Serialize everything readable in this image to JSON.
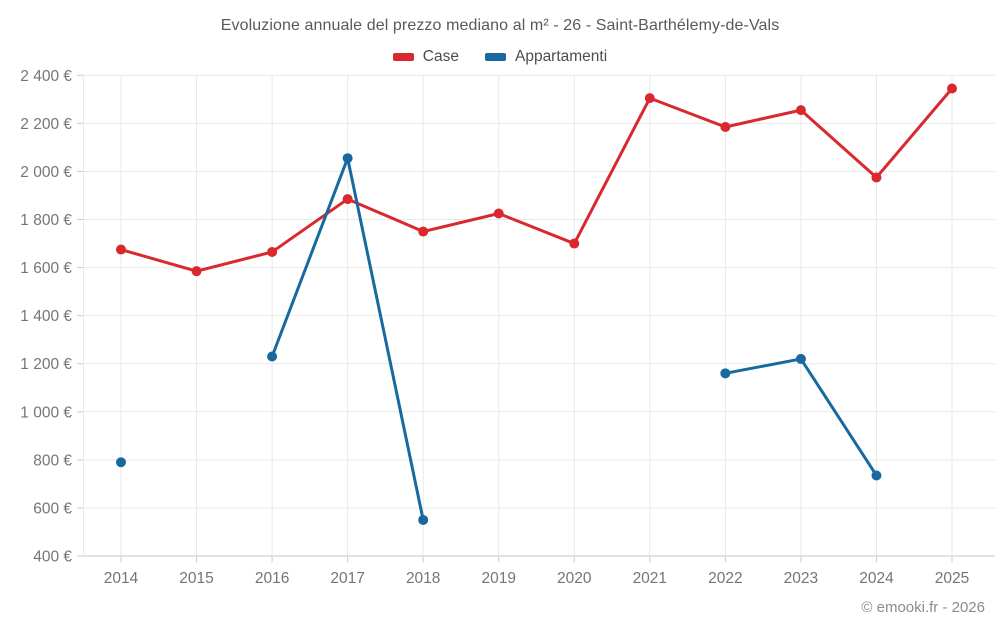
{
  "header": {
    "title": "Evoluzione annuale del prezzo mediano al m² - 26 - Saint-Barthélemy-de-Vals"
  },
  "footer": {
    "credit": "© emooki.fr - 2026"
  },
  "colors": {
    "case_red": "#d9292e",
    "appartamenti_blue": "#17699f",
    "grid_line": "#e9e9e9",
    "axis_line": "#c6c6c6",
    "tick_mark": "#cccccc",
    "tick_label": "#757575",
    "title_text": "#595959",
    "legend_text": "#4d4d4d",
    "background": "#ffffff"
  },
  "chart_data": {
    "type": "line",
    "title": "Evoluzione annuale del prezzo mediano al m² - 26 - Saint-Barthélemy-de-Vals",
    "categories": [
      "2014",
      "2015",
      "2016",
      "2017",
      "2018",
      "2019",
      "2020",
      "2021",
      "2022",
      "2023",
      "2024",
      "2025"
    ],
    "series": [
      {
        "name": "Case",
        "color": "#d9292e",
        "values": [
          1675,
          1585,
          1665,
          1885,
          1750,
          1825,
          1700,
          2305,
          2185,
          2255,
          1975,
          2345
        ]
      },
      {
        "name": "Appartamenti",
        "color": "#17699f",
        "values": [
          790,
          null,
          1230,
          2055,
          550,
          null,
          null,
          null,
          1160,
          1220,
          735,
          null
        ]
      }
    ],
    "xlabel": "",
    "ylabel": "",
    "ylim": [
      400,
      2400
    ],
    "y_ticks": [
      400,
      600,
      800,
      1000,
      1200,
      1400,
      1600,
      1800,
      2000,
      2200,
      2400
    ],
    "y_tick_labels": [
      "400 €",
      "600 €",
      "800 €",
      "1 000 €",
      "1 200 €",
      "1 400 €",
      "1 600 €",
      "1 800 €",
      "2 000 €",
      "2 200 €",
      "2 400 €"
    ],
    "grid": true,
    "legend_position": "top",
    "annotation": "© emooki.fr - 2026"
  }
}
